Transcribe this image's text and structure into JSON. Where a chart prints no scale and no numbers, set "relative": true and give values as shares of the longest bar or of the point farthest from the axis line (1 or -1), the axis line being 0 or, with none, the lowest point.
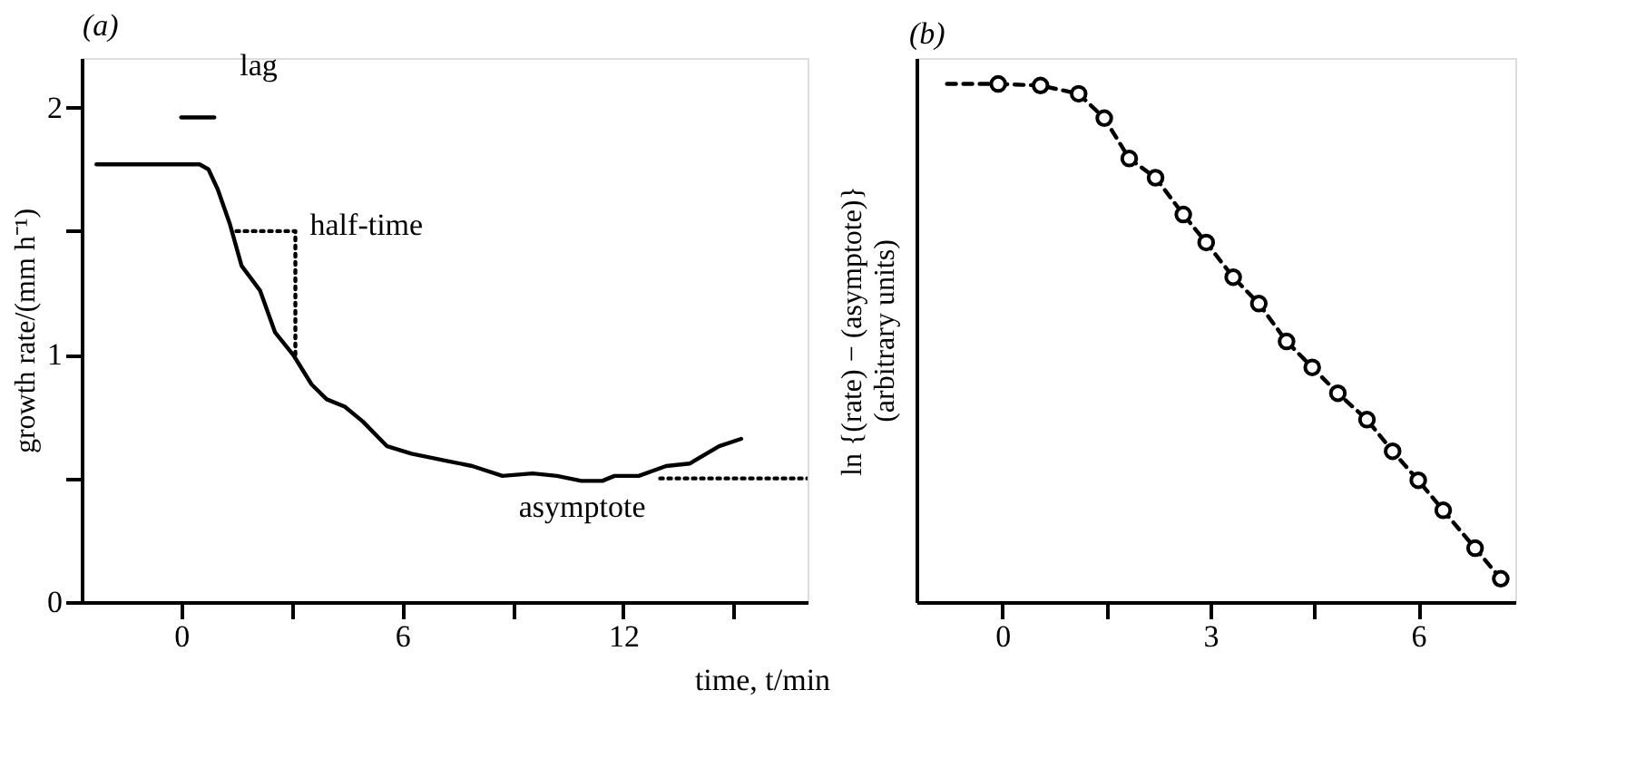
{
  "chart_data": [
    {
      "type": "line",
      "title": "(a)",
      "ylabel": "growth rate/(mm h⁻¹)",
      "xlabel": "time, t/min",
      "xlim": [
        -2.7,
        17
      ],
      "xticks": [
        0,
        {
          "value": 3,
          "label": null
        },
        6,
        {
          "value": 9,
          "label": null
        },
        12,
        {
          "value": 15,
          "label": null
        }
      ],
      "ylim": [
        0,
        2.2
      ],
      "yticks": [
        0,
        {
          "value": 0.5,
          "label": null
        },
        1,
        {
          "value": 1.5,
          "label": null
        },
        2
      ],
      "grid": false,
      "legend": false,
      "series": [
        {
          "color": "#000000",
          "line_style": "solid",
          "x": [
            -2.3,
            0.5,
            0.74,
            0.99,
            1.32,
            1.64,
            2.14,
            2.55,
            3.04,
            3.54,
            3.95,
            4.44,
            4.93,
            5.59,
            6.25,
            7.24,
            7.9,
            8.72,
            9.54,
            10.2,
            10.86,
            11.43,
            11.76,
            12.42,
            13.16,
            13.8,
            14.6,
            15.2
          ],
          "values": [
            1.77,
            1.77,
            1.75,
            1.67,
            1.53,
            1.36,
            1.26,
            1.09,
            1.0,
            0.88,
            0.82,
            0.79,
            0.73,
            0.63,
            0.6,
            0.57,
            0.55,
            0.51,
            0.52,
            0.51,
            0.49,
            0.49,
            0.51,
            0.51,
            0.55,
            0.56,
            0.63,
            0.66
          ]
        },
        {
          "color": "#000000",
          "line_style": "solid",
          "x": [
            0,
            0.9
          ],
          "values": [
            1.96,
            1.96
          ]
        },
        {
          "color": "#000000",
          "line_style": "dotted",
          "x": [
            1.5,
            3.1,
            3.1
          ],
          "values": [
            1.5,
            1.5,
            1.0
          ]
        },
        {
          "color": "#000000",
          "line_style": "dotted",
          "x": [
            13,
            17
          ],
          "values": [
            0.5,
            0.5
          ]
        }
      ],
      "annotations": [
        {
          "text": "lag",
          "x": 0.9,
          "y": 1.96
        },
        {
          "text": "half-time",
          "x": 3.1,
          "y": 1.5
        },
        {
          "text": "asymptote",
          "x": 13,
          "y": 0.5
        }
      ]
    },
    {
      "type": "line",
      "title": "(b)",
      "ylabel": "ln {(rate) − (asymptote)}\n(arbitrary units)",
      "relative": true,
      "xlim": [
        -1.24,
        7.4
      ],
      "xticks": [
        0,
        {
          "value": 1.5,
          "label": null
        },
        3,
        {
          "value": 4.5,
          "label": null
        },
        6
      ],
      "grid": false,
      "legend": false,
      "series": [
        {
          "color": "#000000",
          "line_style": "dashed",
          "x": [
            -0.8,
            -0.06
          ],
          "values": [
            1,
            1
          ]
        },
        {
          "color": "#000000",
          "line_style": "dashed",
          "marker": "circle",
          "x": [
            -0.06,
            0.55,
            1.1,
            1.47,
            1.83,
            2.21,
            2.61,
            2.94,
            3.33,
            3.7,
            4.1,
            4.47,
            4.84,
            5.26,
            5.63,
            6.0,
            6.36,
            6.82,
            7.19
          ],
          "values": [
            1,
            0.997,
            0.981,
            0.934,
            0.856,
            0.819,
            0.748,
            0.694,
            0.627,
            0.576,
            0.503,
            0.453,
            0.403,
            0.352,
            0.291,
            0.235,
            0.177,
            0.104,
            0.045
          ]
        }
      ]
    }
  ]
}
